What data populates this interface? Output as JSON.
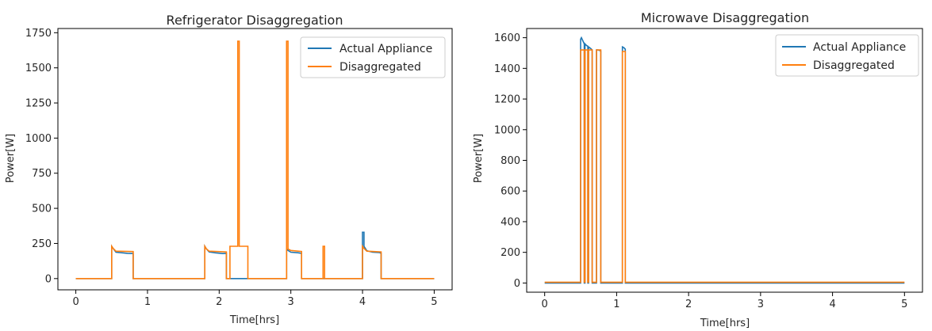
{
  "colors": {
    "actual": "#1f77b4",
    "disagg": "#ff7f0e"
  },
  "chart_data": [
    {
      "type": "line",
      "title": "Refrigerator Disaggregation",
      "xlabel": "Time[hrs]",
      "ylabel": "Power[W]",
      "xlim": [
        -0.25,
        5.25
      ],
      "ylim": [
        -80,
        1780
      ],
      "xticks": [
        "0",
        "1",
        "2",
        "3",
        "4",
        "5"
      ],
      "xtick_values": [
        0,
        1,
        2,
        3,
        4,
        5
      ],
      "yticks": [
        "0",
        "250",
        "500",
        "750",
        "1000",
        "1250",
        "1500",
        "1750"
      ],
      "ytick_values": [
        0,
        250,
        500,
        750,
        1000,
        1250,
        1500,
        1750
      ],
      "legend": "upper right",
      "series": [
        {
          "name": "Actual Appliance",
          "color_key": "actual",
          "x": [
            0,
            0.5,
            0.5,
            0.52,
            0.56,
            0.64,
            0.72,
            0.8,
            0.8,
            1.8,
            1.8,
            1.82,
            1.86,
            1.95,
            2.05,
            2.1,
            2.1,
            2.14,
            2.14,
            2.94,
            2.94,
            2.96,
            3.0,
            3.1,
            3.15,
            3.15,
            4.0,
            4.0,
            4.02,
            4.02,
            4.06,
            4.14,
            4.24,
            4.26,
            4.26,
            5.0
          ],
          "y": [
            0,
            0,
            230,
            215,
            188,
            184,
            180,
            178,
            0,
            0,
            230,
            212,
            190,
            183,
            178,
            180,
            0,
            0,
            0,
            0,
            210,
            200,
            188,
            184,
            180,
            0,
            0,
            330,
            330,
            230,
            198,
            188,
            185,
            180,
            0,
            0
          ]
        },
        {
          "name": "Disaggregated",
          "color_key": "disagg",
          "x": [
            0,
            0.5,
            0.5,
            0.52,
            0.56,
            0.8,
            0.8,
            1.8,
            1.8,
            1.82,
            1.86,
            2.1,
            2.1,
            2.15,
            2.15,
            2.26,
            2.26,
            2.28,
            2.28,
            2.4,
            2.4,
            2.94,
            2.94,
            2.96,
            2.96,
            3.0,
            3.15,
            3.15,
            3.45,
            3.45,
            3.47,
            3.47,
            4.0,
            4.0,
            4.02,
            4.06,
            4.26,
            4.26,
            5.0
          ],
          "y": [
            0,
            0,
            230,
            215,
            195,
            192,
            0,
            0,
            230,
            212,
            195,
            190,
            0,
            0,
            230,
            230,
            1690,
            1690,
            230,
            230,
            0,
            0,
            1690,
            1690,
            210,
            200,
            193,
            0,
            0,
            230,
            230,
            0,
            0,
            230,
            215,
            195,
            190,
            0,
            0
          ]
        }
      ]
    },
    {
      "type": "line",
      "title": "Microwave Disaggregation",
      "xlabel": "Time[hrs]",
      "ylabel": "Power[W]",
      "xlim": [
        -0.25,
        5.25
      ],
      "ylim": [
        -60,
        1660
      ],
      "xticks": [
        "0",
        "1",
        "2",
        "3",
        "4",
        "5"
      ],
      "xtick_values": [
        0,
        1,
        2,
        3,
        4,
        5
      ],
      "yticks": [
        "0",
        "200",
        "400",
        "600",
        "800",
        "1000",
        "1200",
        "1400",
        "1600"
      ],
      "ytick_values": [
        0,
        200,
        400,
        600,
        800,
        1000,
        1200,
        1400,
        1600
      ],
      "legend": "upper right",
      "series": [
        {
          "name": "Actual Appliance",
          "color_key": "actual",
          "x": [
            0,
            0.5,
            0.5,
            0.51,
            0.53,
            0.55,
            0.55,
            0.56,
            0.56,
            0.58,
            0.6,
            0.6,
            0.61,
            0.61,
            0.64,
            0.66,
            0.66,
            0.72,
            0.72,
            0.74,
            0.78,
            0.78,
            1.08,
            1.08,
            1.1,
            1.12,
            1.12,
            5.0
          ],
          "y": [
            0,
            0,
            1590,
            1600,
            1580,
            1560,
            0,
            0,
            1560,
            1550,
            1545,
            0,
            0,
            1540,
            1530,
            1520,
            0,
            0,
            1520,
            1520,
            1515,
            0,
            0,
            1540,
            1535,
            1525,
            0,
            0
          ]
        },
        {
          "name": "Disaggregated",
          "color_key": "disagg",
          "x": [
            0,
            0.5,
            0.5,
            0.55,
            0.55,
            0.56,
            0.56,
            0.6,
            0.6,
            0.61,
            0.61,
            0.66,
            0.66,
            0.72,
            0.72,
            0.78,
            0.78,
            1.08,
            1.08,
            1.12,
            1.12,
            5.0
          ],
          "y": [
            5,
            5,
            1520,
            1520,
            5,
            5,
            1520,
            1520,
            5,
            5,
            1520,
            1520,
            5,
            5,
            1520,
            1520,
            5,
            5,
            1510,
            1510,
            5,
            5
          ]
        }
      ]
    }
  ]
}
